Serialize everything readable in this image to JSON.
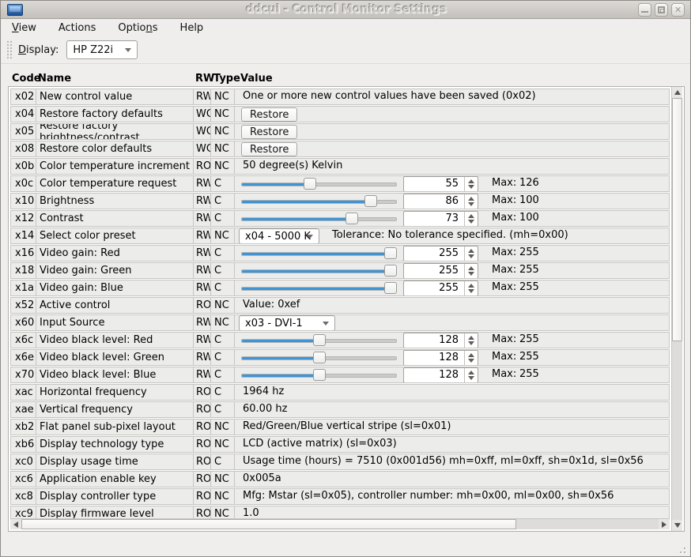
{
  "window": {
    "title": "ddcui - Control Monitor Settings"
  },
  "titlebar": {
    "close_glyph": "✕"
  },
  "menubar": {
    "items": [
      {
        "pre": "",
        "accel": "V",
        "post": "iew"
      },
      {
        "pre": "",
        "accel": "",
        "post": "Actions"
      },
      {
        "pre": "Optio",
        "accel": "n",
        "post": "s"
      },
      {
        "pre": "",
        "accel": "",
        "post": "Help"
      }
    ]
  },
  "toolbar": {
    "display_label": {
      "pre": "",
      "accel": "D",
      "post": "isplay:"
    },
    "display_value": "HP Z22i"
  },
  "table": {
    "headers": {
      "code": "Code",
      "name": "Name",
      "rw": "RW",
      "type": "Type",
      "value": "Value"
    },
    "max_label": "Max:"
  },
  "rows": [
    {
      "code": "x02",
      "name": "New control value",
      "rw": "RW",
      "type": "NC",
      "kind": "text",
      "text": "One or more new control values have been saved (0x02)"
    },
    {
      "code": "x04",
      "name": "Restore factory defaults",
      "rw": "WO",
      "type": "NC",
      "kind": "button",
      "button": "Restore"
    },
    {
      "code": "x05",
      "name": "Restore factory brightness/contrast",
      "rw": "WO",
      "type": "NC",
      "kind": "button",
      "button": "Restore"
    },
    {
      "code": "x08",
      "name": "Restore color defaults",
      "rw": "WO",
      "type": "NC",
      "kind": "button",
      "button": "Restore"
    },
    {
      "code": "x0b",
      "name": "Color temperature increment",
      "rw": "RO",
      "type": "NC",
      "kind": "text",
      "text": "50 degree(s) Kelvin"
    },
    {
      "code": "x0c",
      "name": "Color temperature request",
      "rw": "RW",
      "type": "C",
      "kind": "slider",
      "value": 55,
      "max": 126
    },
    {
      "code": "x10",
      "name": "Brightness",
      "rw": "RW",
      "type": "C",
      "kind": "slider",
      "value": 86,
      "max": 100
    },
    {
      "code": "x12",
      "name": "Contrast",
      "rw": "RW",
      "type": "C",
      "kind": "slider",
      "value": 73,
      "max": 100
    },
    {
      "code": "x14",
      "name": "Select color preset",
      "rw": "RW",
      "type": "NC",
      "kind": "combo",
      "combo": "x04 - 5000 K",
      "combo_width": 102,
      "text": "Tolerance: No tolerance specified. (mh=0x00)"
    },
    {
      "code": "x16",
      "name": "Video gain: Red",
      "rw": "RW",
      "type": "C",
      "kind": "slider",
      "value": 255,
      "max": 255
    },
    {
      "code": "x18",
      "name": "Video gain: Green",
      "rw": "RW",
      "type": "C",
      "kind": "slider",
      "value": 255,
      "max": 255
    },
    {
      "code": "x1a",
      "name": "Video gain: Blue",
      "rw": "RW",
      "type": "C",
      "kind": "slider",
      "value": 255,
      "max": 255
    },
    {
      "code": "x52",
      "name": "Active control",
      "rw": "RO",
      "type": "NC",
      "kind": "text",
      "text": "Value: 0xef"
    },
    {
      "code": "x60",
      "name": "Input Source",
      "rw": "RW",
      "type": "NC",
      "kind": "combo",
      "combo": "x03 - DVI-1",
      "combo_width": 122,
      "text": ""
    },
    {
      "code": "x6c",
      "name": "Video black level: Red",
      "rw": "RW",
      "type": "C",
      "kind": "slider",
      "value": 128,
      "max": 255
    },
    {
      "code": "x6e",
      "name": "Video black level: Green",
      "rw": "RW",
      "type": "C",
      "kind": "slider",
      "value": 128,
      "max": 255
    },
    {
      "code": "x70",
      "name": "Video black level: Blue",
      "rw": "RW",
      "type": "C",
      "kind": "slider",
      "value": 128,
      "max": 255
    },
    {
      "code": "xac",
      "name": "Horizontal frequency",
      "rw": "RO",
      "type": "C",
      "kind": "text",
      "text": "1964 hz"
    },
    {
      "code": "xae",
      "name": "Vertical frequency",
      "rw": "RO",
      "type": "C",
      "kind": "text",
      "text": "60.00 hz"
    },
    {
      "code": "xb2",
      "name": "Flat panel sub-pixel layout",
      "rw": "RO",
      "type": "NC",
      "kind": "text",
      "text": "Red/Green/Blue vertical stripe (sl=0x01)"
    },
    {
      "code": "xb6",
      "name": "Display technology type",
      "rw": "RO",
      "type": "NC",
      "kind": "text",
      "text": "LCD (active matrix) (sl=0x03)"
    },
    {
      "code": "xc0",
      "name": "Display usage time",
      "rw": "RO",
      "type": "C",
      "kind": "text",
      "text": "Usage time (hours) = 7510 (0x001d56) mh=0xff, ml=0xff, sh=0x1d, sl=0x56"
    },
    {
      "code": "xc6",
      "name": "Application enable key",
      "rw": "RO",
      "type": "NC",
      "kind": "text",
      "text": "0x005a"
    },
    {
      "code": "xc8",
      "name": "Display controller type",
      "rw": "RO",
      "type": "NC",
      "kind": "text",
      "text": "Mfg: Mstar (sl=0x05), controller number: mh=0x00, ml=0x00, sh=0x56"
    },
    {
      "code": "xc9",
      "name": "Display firmware level",
      "rw": "RO",
      "type": "NC",
      "kind": "text",
      "text": "1.0"
    }
  ],
  "colors": {
    "accent_blue": "#3d94d6",
    "row_bg": "#ececea",
    "chrome_bg": "#efeeec",
    "titlebar_top": "#dcdad6",
    "titlebar_bottom": "#c3c0bb"
  }
}
